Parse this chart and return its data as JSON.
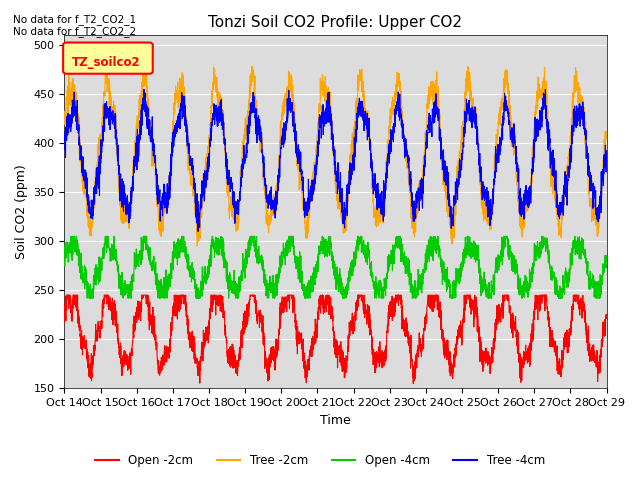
{
  "title": "Tonzi Soil CO2 Profile: Upper CO2",
  "ylabel": "Soil CO2 (ppm)",
  "xlabel": "Time",
  "annotations": [
    "No data for f_T2_CO2_1",
    "No data for f_T2_CO2_2"
  ],
  "legend_label": "TZ_soilco2",
  "ylim": [
    150,
    510
  ],
  "yticks": [
    150,
    200,
    250,
    300,
    350,
    400,
    450,
    500
  ],
  "xtick_labels": [
    "Oct 14",
    "Oct 15",
    "Oct 16",
    "Oct 17",
    "Oct 18",
    "Oct 19",
    "Oct 20",
    "Oct 21",
    "Oct 22",
    "Oct 23",
    "Oct 24",
    "Oct 25",
    "Oct 26",
    "Oct 27",
    "Oct 28",
    "Oct 29"
  ],
  "line_colors": {
    "open_2cm": "#ff0000",
    "tree_2cm": "#ffa500",
    "open_4cm": "#00cc00",
    "tree_4cm": "#0000ff"
  },
  "legend_labels": [
    "Open -2cm",
    "Tree -2cm",
    "Open -4cm",
    "Tree -4cm"
  ],
  "background_color": "#ffffff",
  "plot_bg_color": "#dcdcdc",
  "n_points": 3000,
  "n_cycles": 15,
  "title_fontsize": 11,
  "axis_fontsize": 9,
  "tick_fontsize": 8
}
